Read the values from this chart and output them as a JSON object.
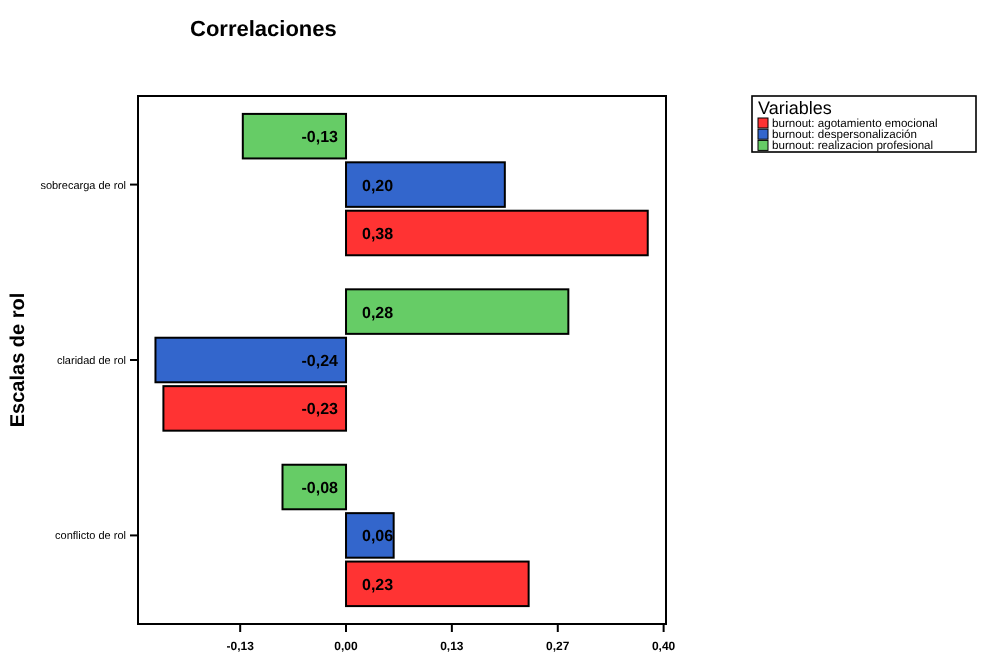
{
  "chart_data": {
    "type": "bar",
    "orientation": "horizontal",
    "title": "Correlaciones",
    "ylabel": "Escalas de rol",
    "legend_title": "Variables",
    "legend": "top right",
    "categories": [
      "sobrecarga de rol",
      "claridad de rol",
      "conflicto de rol"
    ],
    "series": [
      {
        "name": "burnout: agotamiento emocional",
        "color": "#ff3333",
        "values": [
          0.38,
          -0.23,
          0.23
        ],
        "value_labels": [
          "0,38",
          "-0,23",
          "0,23"
        ]
      },
      {
        "name": "burnout: despersonalización",
        "color": "#3366cc",
        "values": [
          0.2,
          -0.24,
          0.06
        ],
        "value_labels": [
          "0,20",
          "-0,24",
          "0,06"
        ]
      },
      {
        "name": "burnout: realizacion profesional",
        "color": "#66cc66",
        "values": [
          -0.13,
          0.28,
          -0.08
        ],
        "value_labels": [
          "-0,13",
          "0,28",
          "-0,08"
        ]
      }
    ],
    "xlim": [
      -0.262,
      0.403
    ],
    "xticks": [
      {
        "value": -0.1333,
        "label": "-0,13"
      },
      {
        "value": 0,
        "label": "0,00"
      },
      {
        "value": 0.1333,
        "label": "0,13"
      },
      {
        "value": 0.2667,
        "label": "0,27"
      },
      {
        "value": 0.4,
        "label": "0,40"
      }
    ],
    "grid": false
  }
}
